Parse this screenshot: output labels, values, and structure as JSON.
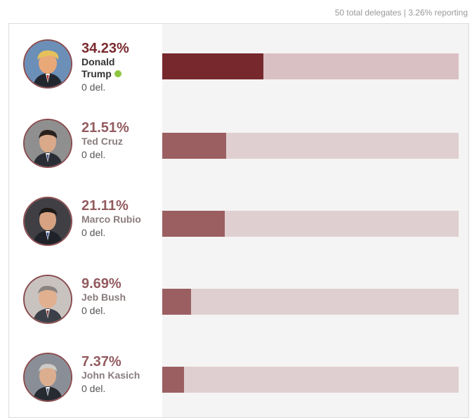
{
  "header": {
    "total_delegates": "50 total delegates",
    "separator": "|",
    "reporting": "3.26% reporting"
  },
  "colors": {
    "leader_fill": "#76282d",
    "leader_track": "#d9c0c2",
    "other_fill": "#9b5f62",
    "other_track": "#e0cfd0",
    "winner_dot": "#8cc63f"
  },
  "chart_data": {
    "type": "bar",
    "orientation": "horizontal",
    "title": "",
    "xlim": [
      0,
      100
    ],
    "unit": "%",
    "categories": [
      "Donald Trump",
      "Ted Cruz",
      "Marco Rubio",
      "Jeb Bush",
      "John Kasich"
    ],
    "values": [
      34.23,
      21.51,
      21.11,
      9.69,
      7.37
    ],
    "candidates": [
      {
        "first": "Donald",
        "last": "Trump",
        "name": "Donald Trump",
        "pct": 34.23,
        "pct_label": "34.23%",
        "delegates": "0 del.",
        "winner": true
      },
      {
        "first": "Ted",
        "last": "Cruz",
        "name": "Ted Cruz",
        "pct": 21.51,
        "pct_label": "21.51%",
        "delegates": "0 del.",
        "winner": false
      },
      {
        "first": "Marco",
        "last": "Rubio",
        "name": "Marco Rubio",
        "pct": 21.11,
        "pct_label": "21.11%",
        "delegates": "0 del.",
        "winner": false
      },
      {
        "first": "Jeb",
        "last": "Bush",
        "name": "Jeb Bush",
        "pct": 9.69,
        "pct_label": "9.69%",
        "delegates": "0 del.",
        "winner": false
      },
      {
        "first": "John",
        "last": "Kasich",
        "name": "John Kasich",
        "pct": 7.37,
        "pct_label": "7.37%",
        "delegates": "0 del.",
        "winner": false
      }
    ]
  }
}
